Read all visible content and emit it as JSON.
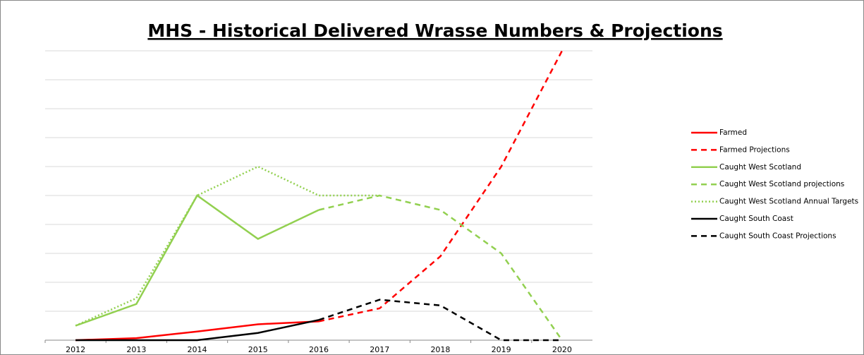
{
  "chart_data": {
    "type": "line",
    "title": "MHS - Historical Delivered Wrasse Numbers & Projections",
    "categories": [
      "2012",
      "2013",
      "2014",
      "2015",
      "2016",
      "2017",
      "2018",
      "2019",
      "2020"
    ],
    "ylim": [
      0,
      10
    ],
    "yticks": [
      0,
      1,
      2,
      3,
      4,
      5,
      6,
      7,
      8,
      9,
      10
    ],
    "grid": true,
    "legend": "right",
    "series": [
      {
        "name": "Farmed",
        "color": "#ff0000",
        "dash": "solid",
        "values": [
          0,
          0.07,
          0.3,
          0.55,
          0.65,
          null,
          null,
          null,
          null
        ]
      },
      {
        "name": "Farmed Projections",
        "color": "#ff0000",
        "dash": "dashed",
        "values": [
          null,
          null,
          null,
          null,
          0.65,
          1.1,
          2.9,
          6.0,
          10
        ]
      },
      {
        "name": "Caught West Scotland",
        "color": "#92d050",
        "dash": "solid",
        "values": [
          0.5,
          1.25,
          5.0,
          3.5,
          4.5,
          null,
          null,
          null,
          null
        ]
      },
      {
        "name": "Caught West Scotland projections",
        "color": "#92d050",
        "dash": "dashed",
        "values": [
          null,
          null,
          null,
          null,
          4.5,
          5.0,
          4.5,
          3.0,
          0
        ]
      },
      {
        "name": "Caught West Scotland Annual Targets",
        "color": "#92d050",
        "dash": "dotted",
        "values": [
          0.5,
          1.45,
          5.0,
          6.0,
          5.0,
          5.0,
          null,
          null,
          null
        ]
      },
      {
        "name": "Caught South Coast",
        "color": "#000000",
        "dash": "solid",
        "values": [
          0,
          0,
          0,
          0.25,
          0.7,
          null,
          null,
          null,
          null
        ]
      },
      {
        "name": "Caught South Coast Projections",
        "color": "#000000",
        "dash": "dashed",
        "values": [
          null,
          null,
          null,
          null,
          0.7,
          1.4,
          1.2,
          0,
          0
        ]
      }
    ]
  }
}
